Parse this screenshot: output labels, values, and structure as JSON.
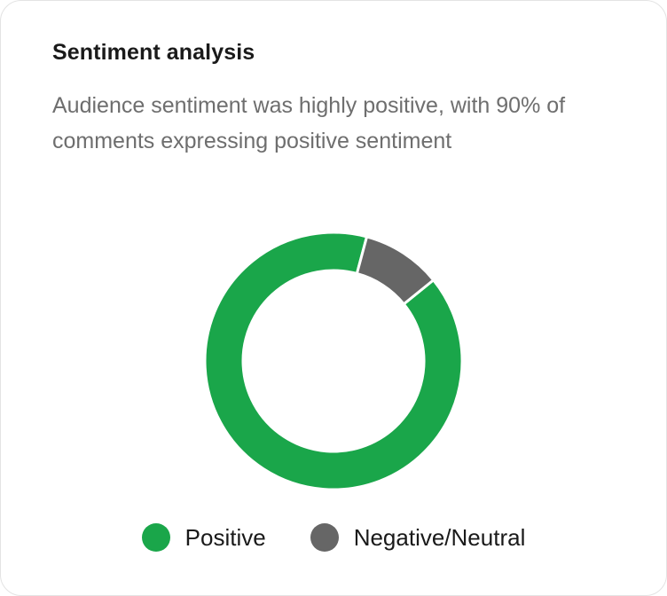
{
  "card": {
    "title": "Sentiment analysis",
    "summary": "Audience sentiment was highly positive, with 90% of comments expressing positive sentiment"
  },
  "colors": {
    "positive": "#1aa64a",
    "negative_neutral": "#666666"
  },
  "chart_data": {
    "type": "pie",
    "variant": "donut",
    "title": "",
    "legend_position": "bottom",
    "slices": [
      {
        "label": "Positive",
        "value": 90,
        "color": "#1aa64a"
      },
      {
        "label": "Negative/Neutral",
        "value": 10,
        "color": "#666666"
      }
    ]
  }
}
